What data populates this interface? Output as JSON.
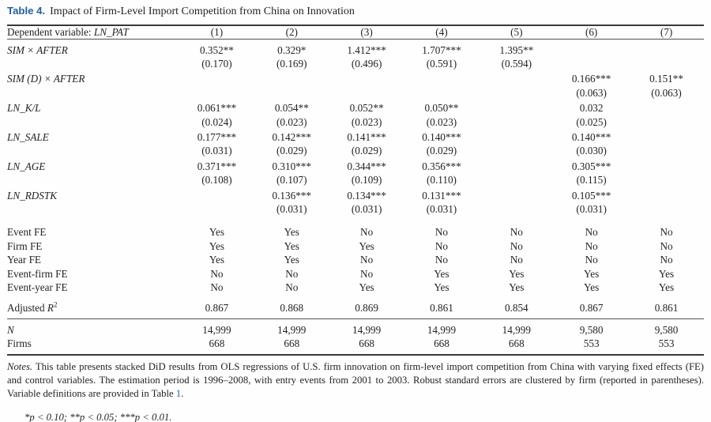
{
  "table": {
    "colors": {
      "accent_blue": "#1f5fa8",
      "text": "#262321"
    },
    "label": "Table 4.",
    "title": "Impact of Firm-Level Import Competition from China on Innovation",
    "header": {
      "dep_label": "Dependent variable: ",
      "dep_var": "LN_PAT",
      "cols": [
        "(1)",
        "(2)",
        "(3)",
        "(4)",
        "(5)",
        "(6)",
        "(7)"
      ]
    },
    "coef_rows": [
      {
        "label": "SIM × AFTER",
        "est": [
          "0.352**",
          "0.329*",
          "1.412***",
          "1.707***",
          "1.395**",
          "",
          ""
        ],
        "se": [
          "(0.170)",
          "(0.169)",
          "(0.496)",
          "(0.591)",
          "(0.594)",
          "",
          ""
        ]
      },
      {
        "label": "SIM (D) × AFTER",
        "est": [
          "",
          "",
          "",
          "",
          "",
          "0.166***",
          "0.151**"
        ],
        "se": [
          "",
          "",
          "",
          "",
          "",
          "(0.063)",
          "(0.063)"
        ]
      },
      {
        "label": "LN_K/L",
        "est": [
          "0.061***",
          "0.054**",
          "0.052**",
          "0.050**",
          "",
          "0.032",
          ""
        ],
        "se": [
          "(0.024)",
          "(0.023)",
          "(0.023)",
          "(0.023)",
          "",
          "(0.025)",
          ""
        ]
      },
      {
        "label": "LN_SALE",
        "est": [
          "0.177***",
          "0.142***",
          "0.141***",
          "0.140***",
          "",
          "0.140***",
          ""
        ],
        "se": [
          "(0.031)",
          "(0.029)",
          "(0.029)",
          "(0.029)",
          "",
          "(0.030)",
          ""
        ]
      },
      {
        "label": "LN_AGE",
        "est": [
          "0.371***",
          "0.310***",
          "0.344***",
          "0.356***",
          "",
          "0.305***",
          ""
        ],
        "se": [
          "(0.108)",
          "(0.107)",
          "(0.109)",
          "(0.110)",
          "",
          "(0.115)",
          ""
        ]
      },
      {
        "label": "LN_RDSTK",
        "est": [
          "",
          "0.136***",
          "0.134***",
          "0.131***",
          "",
          "0.105***",
          ""
        ],
        "se": [
          "",
          "(0.031)",
          "(0.031)",
          "(0.031)",
          "",
          "(0.031)",
          ""
        ]
      }
    ],
    "fe_rows": [
      {
        "label": "Event FE",
        "values": [
          "Yes",
          "Yes",
          "No",
          "No",
          "No",
          "No",
          "No"
        ]
      },
      {
        "label": "Firm FE",
        "values": [
          "Yes",
          "Yes",
          "Yes",
          "No",
          "No",
          "No",
          "No"
        ]
      },
      {
        "label": "Year FE",
        "values": [
          "Yes",
          "Yes",
          "No",
          "No",
          "No",
          "No",
          "No"
        ]
      },
      {
        "label": "Event-firm FE",
        "values": [
          "No",
          "No",
          "No",
          "Yes",
          "Yes",
          "Yes",
          "Yes"
        ]
      },
      {
        "label": "Event-year FE",
        "values": [
          "No",
          "No",
          "Yes",
          "Yes",
          "Yes",
          "Yes",
          "Yes"
        ]
      }
    ],
    "adj_row": {
      "label_prefix": "Adjusted ",
      "label_var": "R",
      "label_sup": "2",
      "values": [
        "0.867",
        "0.868",
        "0.869",
        "0.861",
        "0.854",
        "0.867",
        "0.861"
      ]
    },
    "n_rows": [
      {
        "label": "N",
        "italic": true,
        "values": [
          "14,999",
          "14,999",
          "14,999",
          "14,999",
          "14,999",
          "9,580",
          "9,580"
        ]
      },
      {
        "label": "Firms",
        "italic": false,
        "values": [
          "668",
          "668",
          "668",
          "668",
          "668",
          "553",
          "553"
        ]
      }
    ],
    "notes": {
      "label": "Notes.",
      "text": "  This table presents stacked DiD results from OLS regressions of U.S. firm innovation on firm-level import competition from China with varying fixed effects (FE) and control variables. The estimation period is 1996–2008, with entry events from 2001 to 2003. Robust standard errors are clustered by firm (reported in parentheses). Variable definitions are provided in Table ",
      "link": "1",
      "after_link": ".",
      "significance": "*p < 0.10; **p < 0.05; ***p < 0.01."
    }
  }
}
